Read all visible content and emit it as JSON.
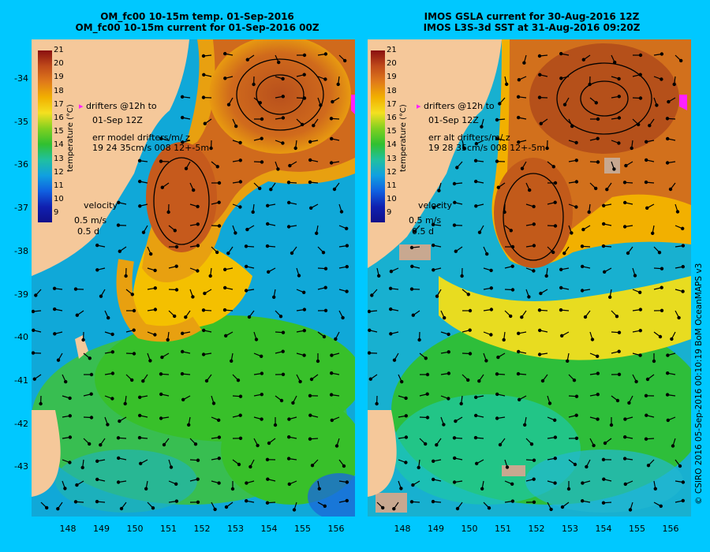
{
  "left_panel": {
    "title_line1": "OM_fc00 10-15m temp. 01-Sep-2016",
    "title_line2": "OM_fc00 10-15m current for 01-Sep-2016 00Z",
    "drifters_line1": "drifters @12h to",
    "drifters_line2": "01-Sep 12Z",
    "err_line1": "err model drifters/m/ z",
    "err_line2": "19 24 35cm/s 008 12+-5m",
    "velocity_label": "velocity",
    "velocity_scale": "0.5 m/s",
    "velocity_time": "0.5 d"
  },
  "right_panel": {
    "title_line1": "IMOS GSLA current for 30-Aug-2016 12Z",
    "title_line2": "IMOS L3S-3d SST at 31-Aug-2016 09:20Z",
    "drifters_line1": "drifters @12h to",
    "drifters_line2": "01-Sep 12Z",
    "err_line1": "err alt drifters/m/ z",
    "err_line2": "19 28 35cm/s 008 12+-5m",
    "velocity_label": "velocity",
    "velocity_scale": "0.5 m/s",
    "velocity_time": "0.5 d"
  },
  "colorbar": {
    "title": "temperature (°C)",
    "ticks": [
      "21",
      "20",
      "19",
      "18",
      "17",
      "16",
      "15",
      "14",
      "13",
      "12",
      "11",
      "10",
      "9"
    ]
  },
  "y_axis": [
    "-34",
    "-35",
    "-36",
    "-37",
    "-38",
    "-39",
    "-40",
    "-41",
    "-42",
    "-43"
  ],
  "x_axis": [
    "148",
    "149",
    "150",
    "151",
    "152",
    "153",
    "154",
    "155",
    "156"
  ],
  "credit": "© CSIRO 2016   05-Sep-2016 00:10:19 BoM OceanMAPS v3",
  "colors": {
    "background": "#00c8ff",
    "land": "#f5c89a",
    "warm": "#c0561e",
    "mid": "#f2b800",
    "cool": "#34c02a",
    "cold": "#10a8d8"
  }
}
